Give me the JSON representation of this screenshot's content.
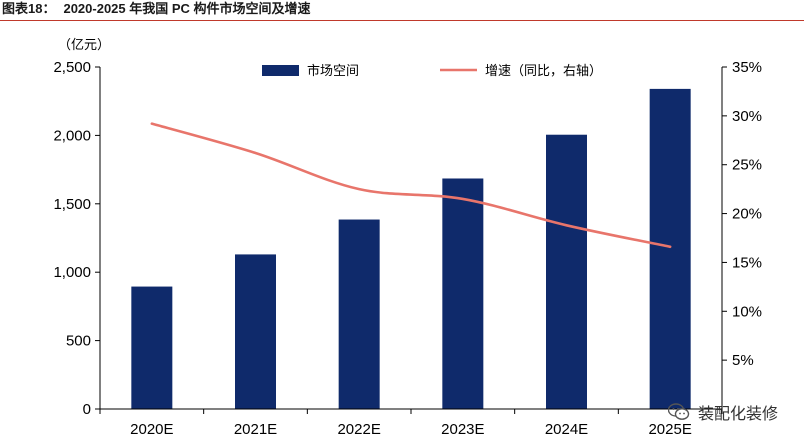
{
  "header": {
    "figure_number": "图表18：",
    "title": "2020-2025 年我国 PC 构件市场空间及增速"
  },
  "watermark": {
    "text": "装配化装修",
    "icon": "wechat-icon"
  },
  "colors": {
    "bar": "#0f2a6b",
    "line": "#e8756b",
    "rule": "#c0392b",
    "axis": "#000000"
  },
  "chart_data": {
    "type": "bar",
    "categories": [
      "2020E",
      "2021E",
      "2022E",
      "2023E",
      "2024E",
      "2025E"
    ],
    "series": [
      {
        "name": "市场空间",
        "type": "bar",
        "axis": "left",
        "values": [
          895,
          1130,
          1385,
          1685,
          2005,
          2340
        ]
      },
      {
        "name": "增速（同比，右轴）",
        "type": "line",
        "axis": "right",
        "values": [
          29.2,
          26.2,
          22.5,
          21.5,
          18.8,
          16.6
        ]
      }
    ],
    "y_left": {
      "unit_label": "（亿元）",
      "ylim": [
        0,
        2500
      ],
      "ticks": [
        0,
        500,
        1000,
        1500,
        2000,
        2500
      ],
      "tick_labels": [
        "0",
        "500",
        "1,000",
        "1,500",
        "2,000",
        "2,500"
      ]
    },
    "y_right": {
      "ylim": [
        0,
        35
      ],
      "ticks": [
        5,
        10,
        15,
        20,
        25,
        30,
        35
      ],
      "tick_labels": [
        "5%",
        "10%",
        "15%",
        "20%",
        "25%",
        "30%",
        "35%"
      ]
    },
    "legend": {
      "placement": "top-center"
    },
    "grid": false
  }
}
